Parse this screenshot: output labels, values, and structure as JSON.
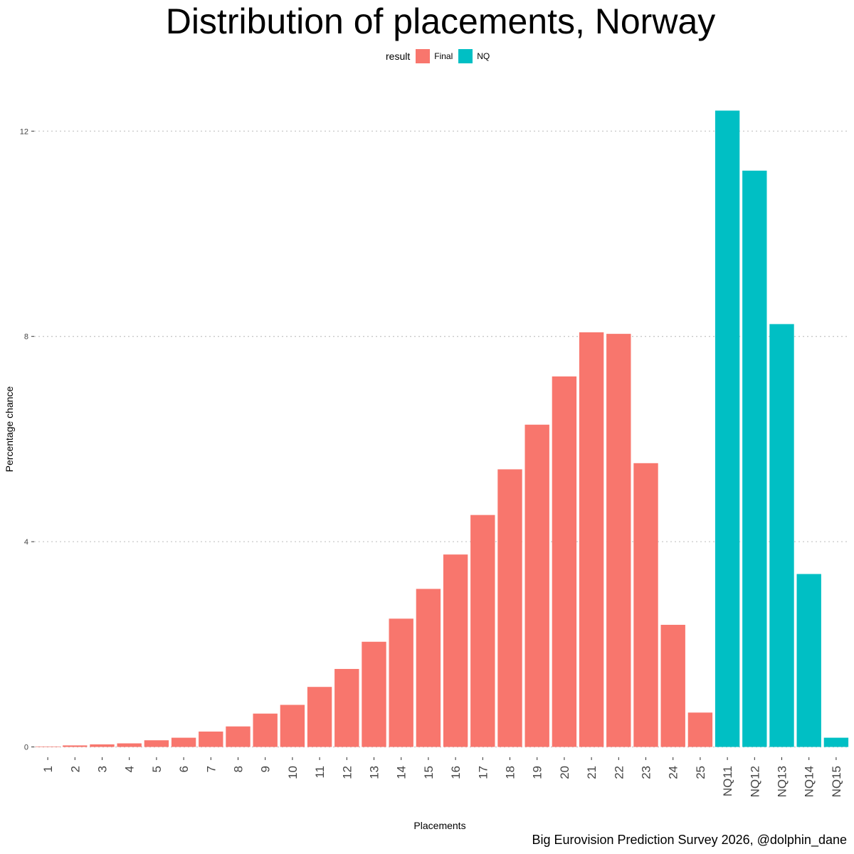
{
  "chart_data": {
    "type": "bar",
    "title": "Distribution of placements, Norway",
    "xlabel": "Placements",
    "ylabel": "Percentage chance",
    "caption": "Big Eurovision Prediction Survey 2026, @dolphin_dane",
    "legend": {
      "title": "result",
      "position": "top",
      "entries": [
        {
          "name": "Final",
          "color": "#F8766D"
        },
        {
          "name": "NQ",
          "color": "#00BFC4"
        }
      ]
    },
    "categories": [
      "1",
      "2",
      "3",
      "4",
      "5",
      "6",
      "7",
      "8",
      "9",
      "10",
      "11",
      "12",
      "13",
      "14",
      "15",
      "16",
      "17",
      "18",
      "19",
      "20",
      "21",
      "22",
      "23",
      "24",
      "25",
      "NQ11",
      "NQ12",
      "NQ13",
      "NQ14",
      "NQ15"
    ],
    "series": [
      {
        "name": "Final",
        "color": "#F8766D",
        "values": [
          0.01,
          0.03,
          0.05,
          0.07,
          0.13,
          0.18,
          0.3,
          0.4,
          0.65,
          0.82,
          1.17,
          1.52,
          2.05,
          2.5,
          3.08,
          3.75,
          4.52,
          5.41,
          6.28,
          7.22,
          8.08,
          8.05,
          5.53,
          2.38,
          0.67,
          null,
          null,
          null,
          null,
          null
        ]
      },
      {
        "name": "NQ",
        "color": "#00BFC4",
        "values": [
          null,
          null,
          null,
          null,
          null,
          null,
          null,
          null,
          null,
          null,
          null,
          null,
          null,
          null,
          null,
          null,
          null,
          null,
          null,
          null,
          null,
          null,
          null,
          null,
          null,
          12.4,
          11.23,
          8.24,
          3.37,
          0.18
        ]
      }
    ],
    "yticks": [
      0,
      4,
      8,
      12
    ],
    "ylim": [
      -0.2,
      12.6
    ],
    "grid": "horizontal dotted"
  }
}
